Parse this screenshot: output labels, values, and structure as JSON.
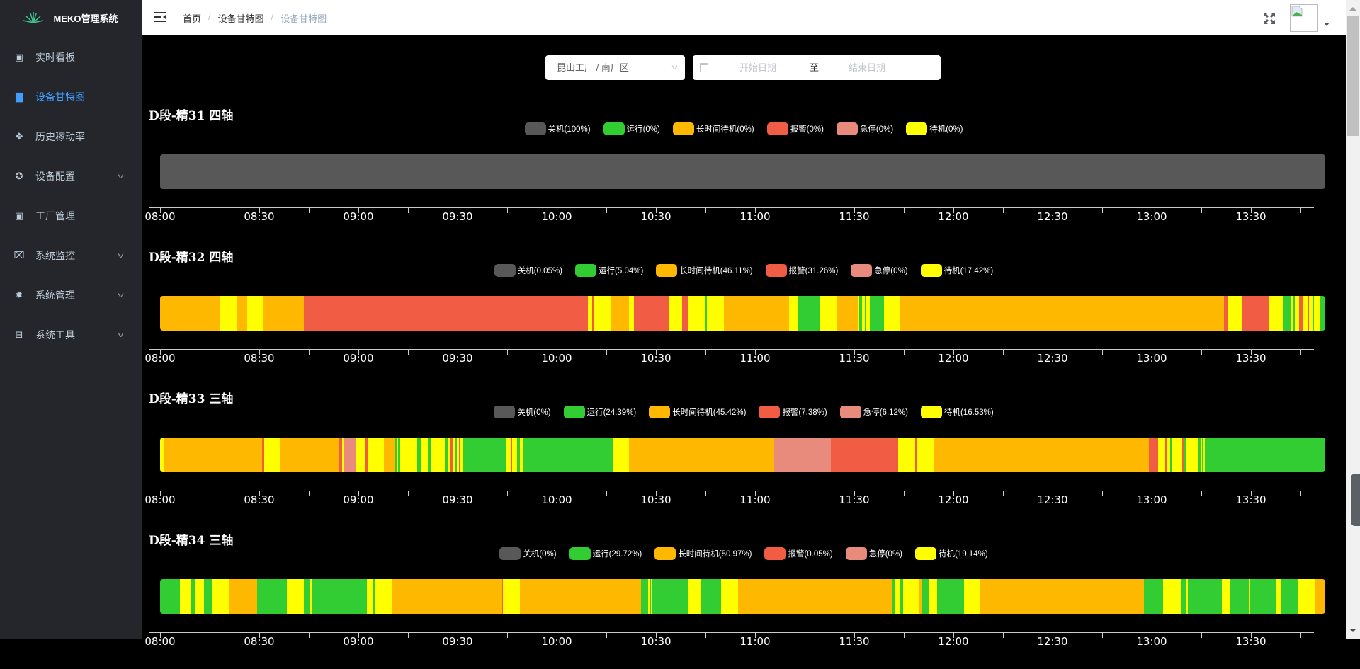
{
  "app": {
    "title": "MEKO管理系统"
  },
  "sidebar": {
    "items": [
      {
        "label": "实时看板",
        "icon": "dashboard-icon",
        "glyph": "▣"
      },
      {
        "label": "设备甘特图",
        "icon": "calendar-icon",
        "glyph": "▇",
        "active": true
      },
      {
        "label": "历史稼动率",
        "icon": "move-icon",
        "glyph": "✥"
      },
      {
        "label": "设备配置",
        "icon": "lifebuoy-icon",
        "glyph": "✪",
        "chevron": true
      },
      {
        "label": "工厂管理",
        "icon": "dashboard-icon",
        "glyph": "▣"
      },
      {
        "label": "系统监控",
        "icon": "monitor-icon",
        "glyph": "⌧",
        "chevron": true
      },
      {
        "label": "系统管理",
        "icon": "gear-icon",
        "glyph": "✹",
        "chevron": true
      },
      {
        "label": "系统工具",
        "icon": "toolbox-icon",
        "glyph": "⊟",
        "chevron": true
      }
    ]
  },
  "header": {
    "breadcrumb": [
      "首页",
      "设备甘特图",
      "设备甘特图"
    ],
    "separator": "/"
  },
  "filters": {
    "factory": "昆山工厂 / 南厂区",
    "start_placeholder": "开始日期",
    "to": "至",
    "end_placeholder": "结束日期"
  },
  "colors": {
    "off": "#585858",
    "run": "#32cd32",
    "long": "#ffb800",
    "alarm": "#f05d44",
    "estop": "#e88a7c",
    "standby": "#ffff00"
  },
  "chart_data": [
    {
      "type": "gantt",
      "title": "D段-精31 四轴",
      "x_unit": "minutes since 08:00",
      "x_ticks": [
        "08:00",
        "08:30",
        "09:00",
        "09:30",
        "10:00",
        "10:30",
        "11:00",
        "11:30",
        "12:00",
        "12:30",
        "13:00",
        "13:30"
      ],
      "legend": [
        {
          "state": "off",
          "label": "关机(100%)"
        },
        {
          "state": "run",
          "label": "运行(0%)"
        },
        {
          "state": "long",
          "label": "长时间待机(0%)"
        },
        {
          "state": "alarm",
          "label": "报警(0%)"
        },
        {
          "state": "estop",
          "label": "急停(0%)"
        },
        {
          "state": "standby",
          "label": "待机(0%)"
        }
      ],
      "segments": [
        [
          "off",
          0,
          352.5
        ]
      ]
    },
    {
      "type": "gantt",
      "title": "D段-精32 四轴",
      "x_unit": "minutes since 08:00",
      "x_ticks": [
        "08:00",
        "08:30",
        "09:00",
        "09:30",
        "10:00",
        "10:30",
        "11:00",
        "11:30",
        "12:00",
        "12:30",
        "13:00",
        "13:30"
      ],
      "legend": [
        {
          "state": "off",
          "label": "关机(0.05%)"
        },
        {
          "state": "run",
          "label": "运行(5.04%)"
        },
        {
          "state": "long",
          "label": "长时间待机(46.11%)"
        },
        {
          "state": "alarm",
          "label": "报警(31.26%)"
        },
        {
          "state": "estop",
          "label": "急停(0%)"
        },
        {
          "state": "standby",
          "label": "待机(17.42%)"
        }
      ],
      "segments": [
        [
          "long",
          0,
          17.9
        ],
        [
          "standby",
          17.9,
          23.2
        ],
        [
          "long",
          23.2,
          26.3
        ],
        [
          "standby",
          26.3,
          31.3
        ],
        [
          "long",
          31.3,
          43.6
        ],
        [
          "alarm",
          43.6,
          129.5
        ],
        [
          "standby",
          129.5,
          130.7
        ],
        [
          "alarm",
          130.7,
          131.3
        ],
        [
          "standby",
          131.3,
          136.6
        ],
        [
          "long",
          136.6,
          141.9
        ],
        [
          "standby",
          141.9,
          143.4
        ],
        [
          "alarm",
          143.4,
          153.9
        ],
        [
          "standby",
          153.9,
          158
        ],
        [
          "alarm",
          158,
          159.6
        ],
        [
          "standby",
          159.6,
          165.1
        ],
        [
          "run",
          165.1,
          165.5
        ],
        [
          "standby",
          165.5,
          170.6
        ],
        [
          "long",
          170.6,
          190.2
        ],
        [
          "standby",
          190.2,
          193.1
        ],
        [
          "run",
          193.1,
          199.7
        ],
        [
          "standby",
          199.7,
          204.9
        ],
        [
          "long",
          204.9,
          211
        ],
        [
          "standby",
          211,
          211.6
        ],
        [
          "run",
          211.6,
          212.4
        ],
        [
          "standby",
          212.4,
          213.3
        ],
        [
          "run",
          213.3,
          213.7
        ],
        [
          "standby",
          213.7,
          214.7
        ],
        [
          "run",
          214.7,
          219
        ],
        [
          "standby",
          219,
          223.9
        ],
        [
          "long",
          223.9,
          321.9
        ],
        [
          "alarm",
          321.9,
          323.1
        ],
        [
          "standby",
          323.1,
          327.2
        ],
        [
          "alarm",
          327.2,
          335.4
        ],
        [
          "standby",
          335.4,
          339.7
        ],
        [
          "run",
          339.7,
          342.2
        ],
        [
          "standby",
          342.2,
          342.8
        ],
        [
          "run",
          342.8,
          343.3
        ],
        [
          "standby",
          343.3,
          344.5
        ],
        [
          "alarm",
          344.5,
          345.7
        ],
        [
          "standby",
          345.7,
          347.3
        ],
        [
          "alarm",
          347.3,
          347.5
        ],
        [
          "standby",
          347.5,
          348.8
        ],
        [
          "run",
          348.8,
          349.1
        ],
        [
          "standby",
          349.1,
          350.8
        ],
        [
          "run",
          350.8,
          352.5
        ]
      ]
    },
    {
      "type": "gantt",
      "title": "D段-精33 三轴",
      "x_unit": "minutes since 08:00",
      "x_ticks": [
        "08:00",
        "08:30",
        "09:00",
        "09:30",
        "10:00",
        "10:30",
        "11:00",
        "11:30",
        "12:00",
        "12:30",
        "13:00",
        "13:30"
      ],
      "legend": [
        {
          "state": "off",
          "label": "关机(0%)"
        },
        {
          "state": "run",
          "label": "运行(24.39%)"
        },
        {
          "state": "long",
          "label": "长时间待机(45.42%)"
        },
        {
          "state": "alarm",
          "label": "报警(7.38%)"
        },
        {
          "state": "estop",
          "label": "急停(6.12%)"
        },
        {
          "state": "standby",
          "label": "待机(16.53%)"
        }
      ],
      "segments": [
        [
          "standby",
          0,
          1.3
        ],
        [
          "long",
          1.3,
          30.9
        ],
        [
          "alarm",
          30.9,
          31.4
        ],
        [
          "standby",
          31.4,
          36.2
        ],
        [
          "long",
          36.2,
          54.1
        ],
        [
          "alarm",
          54.1,
          55
        ],
        [
          "standby",
          55,
          55.4
        ],
        [
          "estop",
          55.4,
          59.1
        ],
        [
          "standby",
          59.1,
          62
        ],
        [
          "alarm",
          62,
          62.9
        ],
        [
          "standby",
          62.9,
          67.7
        ],
        [
          "long",
          67.7,
          71.1
        ],
        [
          "run",
          71.1,
          71.6
        ],
        [
          "standby",
          71.6,
          72
        ],
        [
          "run",
          72,
          72.7
        ],
        [
          "standby",
          72.7,
          75.2
        ],
        [
          "run",
          75.2,
          75.5
        ],
        [
          "standby",
          75.5,
          77.8
        ],
        [
          "run",
          77.8,
          79
        ],
        [
          "standby",
          79,
          81
        ],
        [
          "run",
          81,
          82.1
        ],
        [
          "standby",
          82.1,
          86.2
        ],
        [
          "run",
          86.2,
          87.1
        ],
        [
          "standby",
          87.1,
          87.8
        ],
        [
          "alarm",
          87.8,
          88.6
        ],
        [
          "standby",
          88.6,
          89.2
        ],
        [
          "run",
          89.2,
          89.7
        ],
        [
          "standby",
          89.7,
          90.4
        ],
        [
          "alarm",
          90.4,
          90.9
        ],
        [
          "standby",
          90.9,
          91.4
        ],
        [
          "run",
          91.4,
          104.5
        ],
        [
          "standby",
          104.5,
          106
        ],
        [
          "alarm",
          106,
          106.5
        ],
        [
          "standby",
          106.5,
          107.9
        ],
        [
          "run",
          107.9,
          108.8
        ],
        [
          "standby",
          108.8,
          109.9
        ],
        [
          "run",
          109.9,
          136.9
        ],
        [
          "standby",
          136.9,
          141.9
        ],
        [
          "long",
          141.9,
          185.7
        ],
        [
          "estop",
          185.7,
          203
        ],
        [
          "alarm",
          203,
          223.2
        ],
        [
          "standby",
          223.2,
          228.5
        ],
        [
          "alarm",
          228.5,
          229.1
        ],
        [
          "standby",
          229.1,
          234.3
        ],
        [
          "long",
          234.3,
          299.2
        ],
        [
          "alarm",
          299.2,
          301.9
        ],
        [
          "standby",
          301.9,
          304
        ],
        [
          "alarm",
          304,
          304.5
        ],
        [
          "standby",
          304.5,
          305.6
        ],
        [
          "run",
          305.6,
          306.3
        ],
        [
          "standby",
          306.3,
          309.2
        ],
        [
          "alarm",
          309.2,
          309.6
        ],
        [
          "run",
          309.6,
          310.2
        ],
        [
          "standby",
          310.2,
          314
        ],
        [
          "run",
          314,
          314.8
        ],
        [
          "standby",
          314.8,
          315.2
        ],
        [
          "run",
          315.2,
          315.7
        ],
        [
          "standby",
          315.7,
          316
        ],
        [
          "run",
          316,
          352.7
        ]
      ]
    },
    {
      "type": "gantt",
      "title": "D段-精34 三轴",
      "x_unit": "minutes since 08:00",
      "x_ticks": [
        "08:00",
        "08:30",
        "09:00",
        "09:30",
        "10:00",
        "10:30",
        "11:00",
        "11:30",
        "12:00",
        "12:30",
        "13:00",
        "13:30"
      ],
      "legend": [
        {
          "state": "off",
          "label": "关机(0%)"
        },
        {
          "state": "run",
          "label": "运行(29.72%)"
        },
        {
          "state": "long",
          "label": "长时间待机(50.97%)"
        },
        {
          "state": "alarm",
          "label": "报警(0.05%)"
        },
        {
          "state": "estop",
          "label": "急停(0%)"
        },
        {
          "state": "standby",
          "label": "待机(19.14%)"
        }
      ],
      "segments": [
        [
          "run",
          0,
          6
        ],
        [
          "standby",
          6,
          9.5
        ],
        [
          "run",
          9.5,
          10.8
        ],
        [
          "standby",
          10.8,
          13.3
        ],
        [
          "run",
          13.3,
          15.7
        ],
        [
          "standby",
          15.7,
          20.9
        ],
        [
          "long",
          20.9,
          29.4
        ],
        [
          "run",
          29.4,
          38.4
        ],
        [
          "standby",
          38.4,
          43.5
        ],
        [
          "run",
          43.5,
          45.4
        ],
        [
          "standby",
          45.4,
          46
        ],
        [
          "run",
          46,
          62.6
        ],
        [
          "standby",
          62.6,
          64.3
        ],
        [
          "run",
          64.3,
          65
        ],
        [
          "standby",
          65,
          70.1
        ],
        [
          "long",
          70.1,
          103.5
        ],
        [
          "alarm",
          103.5,
          103.7
        ],
        [
          "standby",
          103.7,
          108.9
        ],
        [
          "long",
          108.9,
          145.5
        ],
        [
          "run",
          145.5,
          147.6
        ],
        [
          "standby",
          147.6,
          148
        ],
        [
          "run",
          148,
          148.5
        ],
        [
          "standby",
          148.5,
          148.9
        ],
        [
          "run",
          148.9,
          159.6
        ],
        [
          "standby",
          159.6,
          163.5
        ],
        [
          "run",
          163.5,
          169.7
        ],
        [
          "standby",
          169.7,
          174.8
        ],
        [
          "long",
          174.8,
          221.6
        ],
        [
          "run",
          221.6,
          222.3
        ],
        [
          "standby",
          222.3,
          223.7
        ],
        [
          "run",
          223.7,
          224.7
        ],
        [
          "standby",
          224.7,
          229.8
        ],
        [
          "long",
          229.8,
          230.5
        ],
        [
          "run",
          230.5,
          232.8
        ],
        [
          "standby",
          232.8,
          235
        ],
        [
          "run",
          235,
          243.2
        ],
        [
          "standby",
          243.2,
          248.2
        ],
        [
          "long",
          248.2,
          297.7
        ],
        [
          "run",
          297.7,
          303.5
        ],
        [
          "standby",
          303.5,
          308.8
        ],
        [
          "run",
          308.8,
          310.2
        ],
        [
          "standby",
          310.2,
          310.9
        ],
        [
          "run",
          310.9,
          321.2
        ],
        [
          "standby",
          321.2,
          323.6
        ],
        [
          "run",
          323.6,
          329.5
        ],
        [
          "standby",
          329.5,
          329.8
        ],
        [
          "run",
          329.8,
          337.7
        ],
        [
          "standby",
          337.7,
          338.9
        ],
        [
          "run",
          338.9,
          344.4
        ],
        [
          "standby",
          344.4,
          349.6
        ],
        [
          "long",
          349.6,
          352.7
        ]
      ]
    }
  ]
}
